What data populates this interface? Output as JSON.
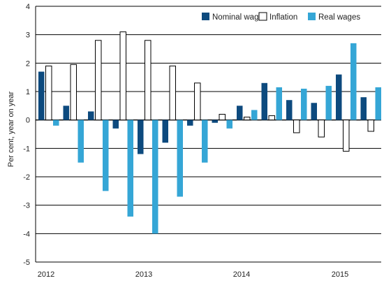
{
  "chart_data": {
    "type": "bar",
    "ylabel": "Per cent, year on year",
    "ylim": [
      -5,
      4
    ],
    "yticks": [
      4,
      3,
      2,
      1,
      0,
      -1,
      -2,
      -3,
      -4,
      -5
    ],
    "x_labels": [
      "2012",
      "2013",
      "2014",
      "2015"
    ],
    "legend_position": "top-right",
    "grid": "horizontal",
    "series": [
      {
        "name": "Nominal wages",
        "color": "#0d4a7e",
        "values": [
          1.7,
          0.5,
          0.3,
          -0.3,
          -1.2,
          -0.8,
          -0.2,
          -0.1,
          0.5,
          1.3,
          0.7,
          0.6,
          1.6,
          0.8
        ]
      },
      {
        "name": "Inflation",
        "color": "#ffffff",
        "values": [
          1.9,
          1.95,
          2.8,
          3.1,
          2.8,
          1.9,
          1.3,
          0.2,
          0.1,
          0.15,
          -0.45,
          -0.6,
          -1.1,
          -0.4
        ]
      },
      {
        "name": "Real wages",
        "color": "#35a6d6",
        "values": [
          -0.2,
          -1.5,
          -2.5,
          -3.4,
          -4.0,
          -2.7,
          -1.5,
          -0.3,
          0.35,
          1.15,
          1.1,
          1.2,
          2.7,
          1.15
        ]
      }
    ]
  }
}
